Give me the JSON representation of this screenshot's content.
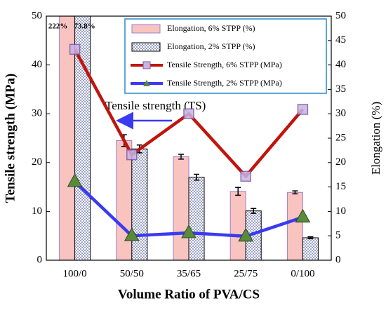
{
  "chart_data": {
    "type": "bar",
    "x_label": "Volume Ratio of PVA/CS",
    "y_label": "Tensile strength (MPa)",
    "y2_label": "Elongation (%)",
    "annotation": "Tensile strength (TS)",
    "categories": [
      "100/0",
      "50/50",
      "35/65",
      "25/75",
      "0/100"
    ],
    "ylim": [
      0,
      50
    ],
    "yticks": [
      0,
      10,
      20,
      30,
      40,
      50
    ],
    "y2lim": [
      0,
      50
    ],
    "y2ticks": [
      0,
      5,
      10,
      15,
      20,
      25,
      30,
      35,
      40,
      45,
      50
    ],
    "series": [
      {
        "name": "Elongation, 6% STPP (%)",
        "type": "bar",
        "axis": "y2",
        "color": "#f9c3c0",
        "values": [
          222,
          24.5,
          21.2,
          14.1,
          13.9
        ],
        "value_labels": [
          "222%",
          null,
          null,
          null,
          null
        ],
        "errors": [
          null,
          1.2,
          0.5,
          0.8,
          0.3
        ]
      },
      {
        "name": "Elongation, 2% STPP (%)",
        "type": "bar",
        "axis": "y2",
        "color": "#2a3a8a",
        "values": [
          73.8,
          22.8,
          17.0,
          10.1,
          4.6
        ],
        "value_labels": [
          "73.8%",
          null,
          null,
          null,
          null
        ],
        "errors": [
          null,
          0.8,
          0.6,
          0.5,
          0.2
        ]
      },
      {
        "name": "Tensile Strength, 6% STPP (MPa)",
        "type": "line",
        "axis": "y",
        "color": "#c0140c",
        "values": [
          43.2,
          21.6,
          30.0,
          17.2,
          30.9
        ]
      },
      {
        "name": "Tensile Strength, 2% STPP (MPa)",
        "type": "line",
        "axis": "y",
        "color": "#3a3af0",
        "values": [
          16.1,
          5.0,
          5.6,
          4.9,
          8.8
        ]
      }
    ]
  }
}
